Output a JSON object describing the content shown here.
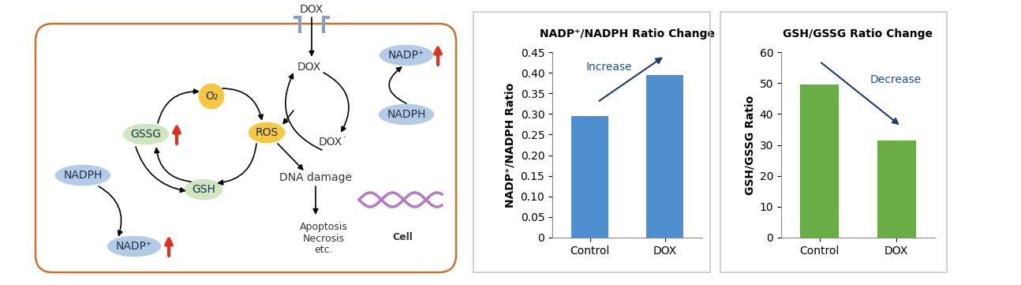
{
  "diagram": {
    "nodes": {
      "dox_outside": {
        "label": "DOX"
      },
      "dox_in": {
        "label": "DOX"
      },
      "dox_radical": {
        "label": "DOX˙"
      },
      "nadp_top": {
        "label": "NADP⁺"
      },
      "nadph_right": {
        "label": "NADPH"
      },
      "o2": {
        "label": "O₂"
      },
      "ros": {
        "label": "ROS"
      },
      "gssg": {
        "label": "GSSG"
      },
      "gsh": {
        "label": "GSH"
      },
      "nadph_left": {
        "label": "NADPH"
      },
      "nadp_bottom": {
        "label": "NADP⁺"
      },
      "dna_damage": {
        "label": "DNA damage"
      },
      "outcomes": {
        "label": "Apoptosis\nNecrosis\netc."
      },
      "cell": {
        "label": "Cell"
      }
    }
  },
  "chart_data": [
    {
      "type": "bar",
      "title": "NADP⁺/NADPH Ratio Change",
      "y_label": "NADP⁺/NADPH Ratio",
      "categories": [
        "Control",
        "DOX"
      ],
      "values": [
        0.295,
        0.395
      ],
      "color": "#4f8fd0",
      "ylim": [
        0,
        0.45
      ],
      "yticks": [
        0,
        0.05,
        {
          "value": 0.1,
          "label": "0.10"
        },
        0.15,
        {
          "value": 0.2,
          "label": "0.20"
        },
        0.25,
        {
          "value": 0.3,
          "label": "0.30"
        },
        0.35,
        {
          "value": 0.4,
          "label": "0.40"
        },
        0.45
      ],
      "annotations": [
        "Increase"
      ]
    },
    {
      "type": "bar",
      "title": "GSH/GSSG Ratio Change",
      "y_label": "GSH/GSSG Ratio",
      "categories": [
        "Control",
        "DOX"
      ],
      "values": [
        49.5,
        31.5
      ],
      "color": "#6aac46",
      "ylim": [
        0,
        60
      ],
      "yticks": [
        0,
        10,
        20,
        30,
        40,
        50,
        60
      ],
      "annotations": [
        "Decrease"
      ]
    }
  ]
}
